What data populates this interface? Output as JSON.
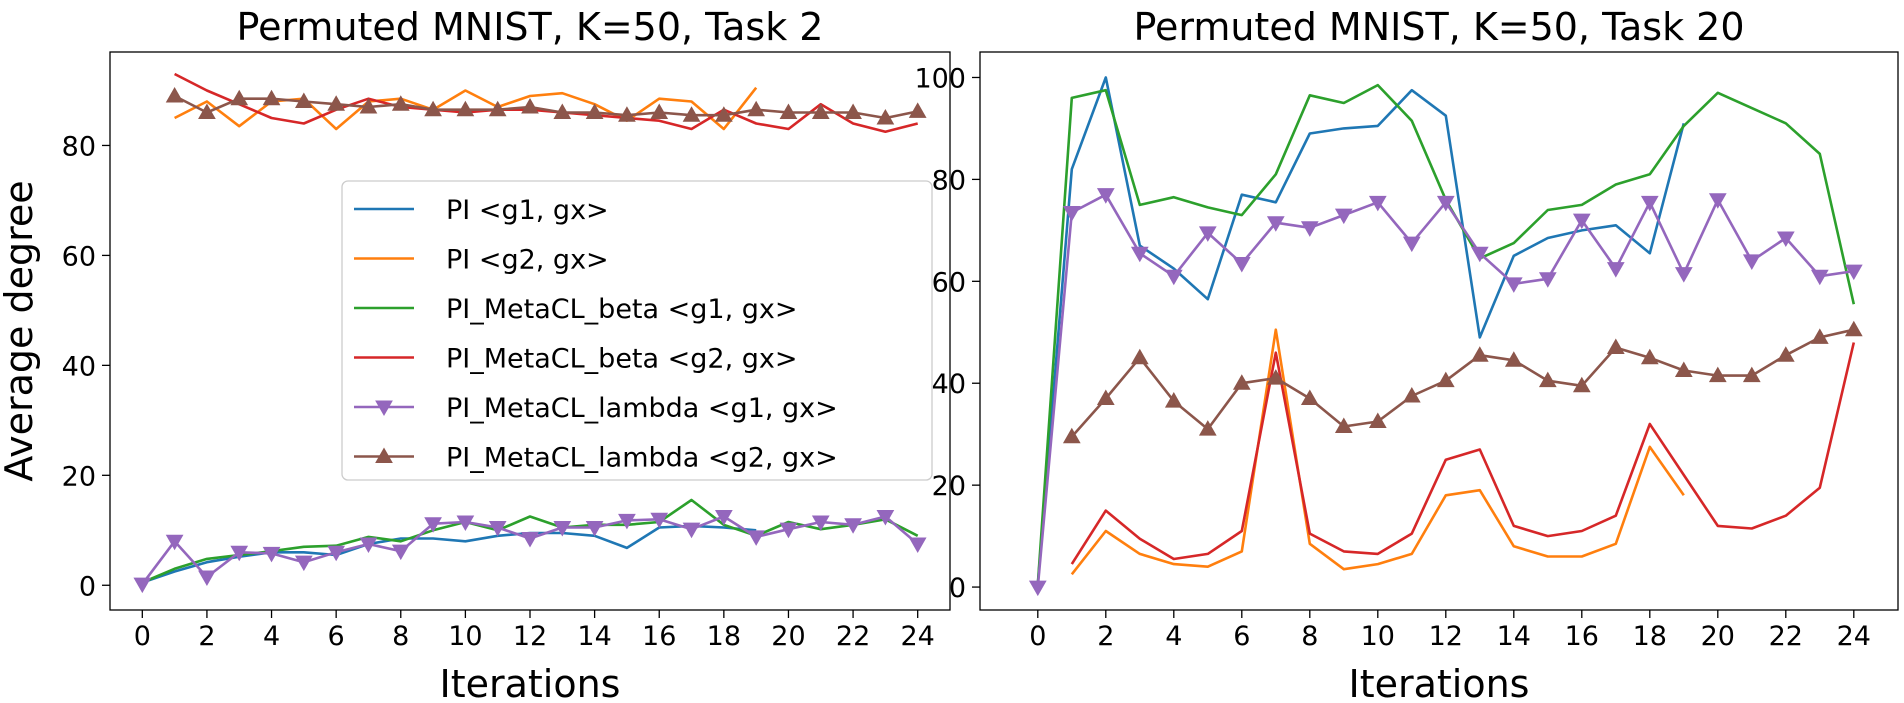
{
  "colors": {
    "blue": "#1f77b4",
    "orange": "#ff7f0e",
    "green": "#2ca02c",
    "red": "#d62728",
    "purple": "#9467bd",
    "brown": "#8c564b"
  },
  "chart_data": [
    {
      "type": "line",
      "title": "Permuted MNIST, K=50, Task 2",
      "xlabel": "Iterations",
      "ylabel": "Average degree",
      "xlim": [
        -1,
        25
      ],
      "ylim": [
        -4.5,
        97
      ],
      "xticks": [
        0,
        2,
        4,
        6,
        8,
        10,
        12,
        14,
        16,
        18,
        20,
        22,
        24
      ],
      "yticks": [
        0,
        20,
        40,
        60,
        80
      ],
      "legend_position": "center-right",
      "series": [
        {
          "name": "PI <g1, gx>",
          "color": "blue",
          "marker": "none",
          "x": [
            0,
            1,
            2,
            3,
            4,
            5,
            6,
            7,
            8,
            9,
            10,
            11,
            12,
            13,
            14,
            15,
            16,
            17,
            18,
            19
          ],
          "values": [
            0.5,
            2.5,
            4.2,
            5.2,
            6,
            6,
            5.5,
            7.5,
            8.5,
            8.5,
            8,
            9,
            9.5,
            9.5,
            9,
            6.8,
            10.5,
            10.8,
            10.5,
            10
          ]
        },
        {
          "name": "PI <g2, gx>",
          "color": "orange",
          "marker": "none",
          "x": [
            1,
            2,
            3,
            4,
            5,
            6,
            7,
            8,
            9,
            10,
            11,
            12,
            13,
            14,
            15,
            16,
            17,
            18,
            19
          ],
          "values": [
            85,
            88,
            83.5,
            88,
            88.5,
            83,
            88,
            88.5,
            86.5,
            90,
            87,
            89,
            89.5,
            87.5,
            84.5,
            88.5,
            88,
            83,
            90.5
          ]
        },
        {
          "name": "PI_MetaCL_beta <g1, gx>",
          "color": "green",
          "marker": "none",
          "x": [
            0,
            1,
            2,
            3,
            4,
            5,
            6,
            7,
            8,
            9,
            10,
            11,
            12,
            13,
            14,
            15,
            16,
            17,
            18,
            19,
            20,
            21,
            22,
            23,
            24
          ],
          "values": [
            0.5,
            3,
            4.8,
            5.5,
            6.2,
            7,
            7.2,
            8.8,
            8,
            10,
            11.5,
            10,
            12.5,
            10.5,
            11,
            11,
            11.5,
            15.5,
            11,
            9,
            11.5,
            10.2,
            11,
            12,
            9
          ]
        },
        {
          "name": "PI_MetaCL_beta <g2, gx>",
          "color": "red",
          "marker": "none",
          "x": [
            1,
            2,
            3,
            4,
            5,
            6,
            7,
            8,
            9,
            10,
            11,
            12,
            13,
            14,
            15,
            16,
            17,
            18,
            19,
            20,
            21,
            22,
            23,
            24
          ],
          "values": [
            93,
            90,
            87.5,
            85,
            84,
            86.5,
            88.5,
            87,
            86.5,
            86,
            86.5,
            86.5,
            86,
            85.5,
            85,
            84.5,
            83,
            86.5,
            84,
            83,
            87.5,
            84,
            82.5,
            84
          ]
        },
        {
          "name": "PI_MetaCL_lambda <g1, gx>",
          "color": "purple",
          "marker": "triangle-down",
          "x": [
            0,
            1,
            2,
            3,
            4,
            5,
            6,
            7,
            8,
            9,
            10,
            11,
            12,
            13,
            14,
            15,
            16,
            17,
            18,
            19,
            20,
            21,
            22,
            23,
            24
          ],
          "values": [
            0.2,
            8,
            1.5,
            6,
            5.8,
            4.2,
            6,
            7.5,
            6.2,
            11.2,
            11.5,
            10.5,
            8.5,
            10.5,
            10.5,
            11.8,
            12,
            10.2,
            12.5,
            8.8,
            10.2,
            11.5,
            11,
            12.5,
            7.5
          ]
        },
        {
          "name": "PI_MetaCL_lambda <g2, gx>",
          "color": "brown",
          "marker": "triangle-up",
          "x": [
            1,
            2,
            3,
            4,
            5,
            6,
            7,
            8,
            9,
            10,
            11,
            12,
            13,
            14,
            15,
            16,
            17,
            18,
            19,
            20,
            21,
            22,
            23,
            24
          ],
          "values": [
            89,
            86,
            88.5,
            88.5,
            88,
            87.5,
            87,
            87.5,
            86.5,
            86.5,
            86.5,
            87,
            86,
            86,
            85.5,
            86,
            85.5,
            85.5,
            86.5,
            86,
            86,
            86,
            85,
            86.2
          ]
        }
      ]
    },
    {
      "type": "line",
      "title": "Permuted MNIST, K=50, Task 20",
      "xlabel": "Iterations",
      "ylabel": "",
      "xlim": [
        -1.7,
        25.3
      ],
      "ylim": [
        -4.5,
        105
      ],
      "xticks": [
        0,
        2,
        4,
        6,
        8,
        10,
        12,
        14,
        16,
        18,
        20,
        22,
        24
      ],
      "yticks": [
        0,
        20,
        40,
        60,
        80,
        100
      ],
      "series": [
        {
          "name": "PI <g1, gx>",
          "color": "blue",
          "marker": "none",
          "x": [
            0,
            1,
            2,
            3,
            4,
            5,
            6,
            7,
            8,
            9,
            10,
            11,
            12,
            13,
            14,
            15,
            16,
            17,
            18,
            19
          ],
          "values": [
            0.5,
            82,
            100,
            67,
            62.5,
            56.5,
            77,
            75.5,
            89,
            90,
            90.5,
            97.5,
            92.5,
            49,
            65,
            68.5,
            70,
            71,
            65.5,
            91
          ]
        },
        {
          "name": "PI <g2, gx>",
          "color": "orange",
          "marker": "none",
          "x": [
            1,
            2,
            3,
            4,
            5,
            6,
            7,
            8,
            9,
            10,
            11,
            12,
            13,
            14,
            15,
            16,
            17,
            18,
            19
          ],
          "values": [
            2.5,
            11,
            6.5,
            4.5,
            4,
            7,
            50.5,
            8.5,
            3.5,
            4.5,
            6.5,
            18,
            19,
            8,
            6,
            6,
            8.5,
            27.5,
            18
          ]
        },
        {
          "name": "PI_MetaCL_beta <g1, gx>",
          "color": "green",
          "marker": "none",
          "x": [
            0,
            1,
            2,
            3,
            4,
            5,
            6,
            7,
            8,
            9,
            10,
            11,
            12,
            13,
            14,
            15,
            16,
            17,
            18,
            19,
            20,
            21,
            22,
            23,
            24
          ],
          "values": [
            0.5,
            96,
            97.5,
            75,
            76.5,
            74.5,
            73,
            81,
            96.5,
            95,
            98.5,
            91.5,
            76,
            64.5,
            67.5,
            74,
            75,
            79,
            81,
            90.5,
            97,
            94,
            91,
            85,
            55.5
          ]
        },
        {
          "name": "PI_MetaCL_beta <g2, gx>",
          "color": "red",
          "marker": "none",
          "x": [
            1,
            2,
            3,
            4,
            5,
            6,
            7,
            8,
            9,
            10,
            11,
            12,
            13,
            14,
            15,
            16,
            17,
            18,
            19,
            20,
            21,
            22,
            23,
            24
          ],
          "values": [
            4.5,
            15,
            9.5,
            5.5,
            6.5,
            11,
            46,
            10.5,
            7,
            6.5,
            10.5,
            25,
            27,
            12,
            10,
            11,
            14,
            32,
            22,
            12,
            11.5,
            14,
            19.5,
            48
          ]
        },
        {
          "name": "PI_MetaCL_lambda <g1, gx>",
          "color": "purple",
          "marker": "triangle-down",
          "x": [
            0,
            1,
            2,
            3,
            4,
            5,
            6,
            7,
            8,
            9,
            10,
            11,
            12,
            13,
            14,
            15,
            16,
            17,
            18,
            19,
            20,
            21,
            22,
            23,
            24
          ],
          "values": [
            0,
            73.5,
            77,
            65.5,
            61,
            69.5,
            63.5,
            71.5,
            70.5,
            73,
            75.5,
            67.5,
            75.5,
            65.5,
            59.5,
            60.5,
            72,
            62.5,
            75.5,
            61.5,
            76,
            64,
            68.5,
            61,
            62
          ]
        },
        {
          "name": "PI_MetaCL_lambda <g2, gx>",
          "color": "brown",
          "marker": "triangle-up",
          "x": [
            1,
            2,
            3,
            4,
            5,
            6,
            7,
            8,
            9,
            10,
            11,
            12,
            13,
            14,
            15,
            16,
            17,
            18,
            19,
            20,
            21,
            22,
            23,
            24
          ],
          "values": [
            29.5,
            37,
            45,
            36.5,
            31,
            40,
            41,
            37,
            31.5,
            32.5,
            37.5,
            40.5,
            45.5,
            44.5,
            40.5,
            39.5,
            47,
            45,
            42.5,
            41.5,
            41.5,
            45.5,
            49,
            50.5
          ]
        }
      ]
    }
  ]
}
